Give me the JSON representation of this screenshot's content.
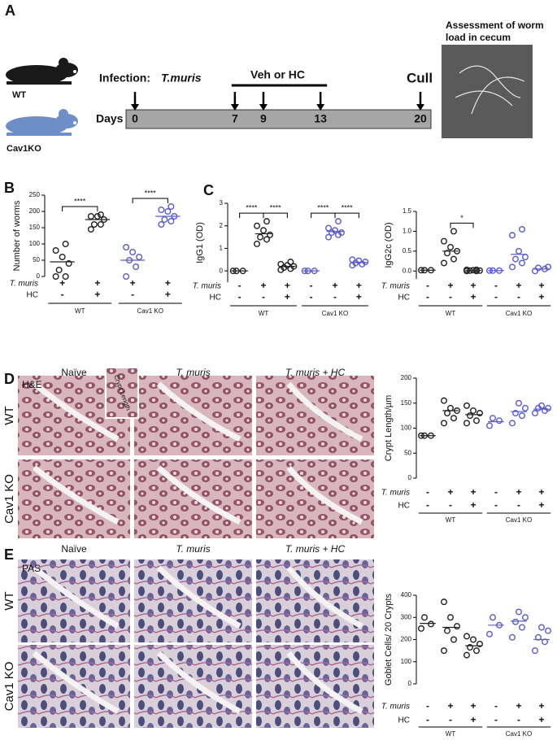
{
  "figure": {
    "a": {
      "label": "A",
      "mouse_labels": [
        "WT",
        "Cav1KO"
      ],
      "infection": "Infection:",
      "pathogen": "T.muris",
      "treatment": "Veh or HC",
      "cull": "Cull",
      "days_label": "Days",
      "days": [
        0,
        7,
        9,
        13,
        20
      ],
      "assessment": "Assessment of worm load in cecum"
    },
    "b_label": "B",
    "c_label": "C",
    "d": {
      "label": "D",
      "stain": "H&E",
      "inset": "Crypt Length",
      "columns": [
        "Naïve",
        "T. muris",
        "T. muris + HC"
      ],
      "rows": [
        "WT",
        "Cav1 KO"
      ]
    },
    "e": {
      "label": "E",
      "stain": "PAS",
      "columns": [
        "Naïve",
        "T. muris",
        "T. muris + HC"
      ],
      "rows": [
        "WT",
        "Cav1 KO"
      ]
    }
  },
  "chart_data": [
    {
      "type": "dotplot",
      "ylabel": "Number of worms",
      "ylim": [
        0,
        250
      ],
      "yticks": [
        0,
        50,
        100,
        150,
        200,
        250
      ],
      "row_labels": [
        "T. muris",
        "HC"
      ],
      "rows": [
        [
          "+",
          "+",
          "+",
          "+"
        ],
        [
          "-",
          "+",
          "-",
          "+"
        ]
      ],
      "group_labels": [
        "WT",
        "Cav1 KO"
      ],
      "groups": [
        {
          "color": "#222222",
          "values": [
            0,
            0,
            20,
            40,
            60,
            80,
            100
          ],
          "mean": 45
        },
        {
          "color": "#222222",
          "values": [
            145,
            160,
            160,
            175,
            185,
            185,
            190
          ],
          "mean": 175
        },
        {
          "color": "#5b5bcc",
          "values": [
            0,
            30,
            50,
            60,
            75,
            90
          ],
          "mean": 50
        },
        {
          "color": "#5b5bcc",
          "values": [
            160,
            170,
            175,
            185,
            200,
            205,
            215
          ],
          "mean": 185
        }
      ],
      "brackets": [
        {
          "label": "****",
          "between": [
            0,
            1
          ]
        },
        {
          "label": "****",
          "between": [
            2,
            3
          ]
        }
      ]
    },
    {
      "type": "dotplot",
      "ylabel": "IgG1 (OD)",
      "ylim": [
        -0.5,
        3
      ],
      "yticks": [
        0,
        1,
        2,
        3
      ],
      "row_labels": [
        "T. muris",
        "HC"
      ],
      "rows": [
        [
          "-",
          "+",
          "+",
          "-",
          "+",
          "+"
        ],
        [
          "-",
          "-",
          "+",
          "-",
          "-",
          "+"
        ]
      ],
      "group_labels": [
        "WT",
        "Cav1 KO"
      ],
      "groups": [
        {
          "color": "#222222",
          "values": [
            0,
            0,
            0
          ],
          "mean": 0
        },
        {
          "color": "#222222",
          "values": [
            1.2,
            1.4,
            1.5,
            1.6,
            1.8,
            2.0,
            2.2
          ],
          "mean": 1.65
        },
        {
          "color": "#222222",
          "values": [
            0.05,
            0.1,
            0.15,
            0.2,
            0.25,
            0.3,
            0.4
          ],
          "mean": 0.2
        },
        {
          "color": "#5b5bcc",
          "values": [
            0,
            0,
            0
          ],
          "mean": 0
        },
        {
          "color": "#5b5bcc",
          "values": [
            1.5,
            1.6,
            1.7,
            1.7,
            1.8,
            1.9,
            2.2
          ],
          "mean": 1.75
        },
        {
          "color": "#5b5bcc",
          "values": [
            0.25,
            0.3,
            0.35,
            0.4,
            0.45,
            0.5
          ],
          "mean": 0.38
        }
      ],
      "brackets": [
        {
          "label": "****",
          "between": [
            0,
            1
          ]
        },
        {
          "label": "****",
          "between": [
            1,
            2
          ]
        },
        {
          "label": "****",
          "between": [
            3,
            4
          ]
        },
        {
          "label": "****",
          "between": [
            4,
            5
          ]
        }
      ]
    },
    {
      "type": "dotplot",
      "ylabel": "IgG2c (OD)",
      "ylim": [
        -0.2,
        1.5
      ],
      "yticks": [
        {
          "value": 0,
          "label": "0.0"
        },
        {
          "value": 0.5,
          "label": "0.5"
        },
        {
          "value": 1,
          "label": "1.0"
        },
        {
          "value": 1.5,
          "label": "1.5"
        }
      ],
      "row_labels": [
        "T. muris",
        "HC"
      ],
      "rows": [
        [
          "-",
          "+",
          "+",
          "-",
          "+",
          "+"
        ],
        [
          "-",
          "-",
          "+",
          "-",
          "-",
          "+"
        ]
      ],
      "group_labels": [
        "WT",
        "Cav1 KO"
      ],
      "groups": [
        {
          "color": "#222222",
          "values": [
            0.02,
            0.02,
            0.02
          ],
          "mean": 0.02
        },
        {
          "color": "#222222",
          "values": [
            0.2,
            0.3,
            0.45,
            0.5,
            0.6,
            0.75,
            1.0
          ],
          "mean": 0.5
        },
        {
          "color": "#222222",
          "values": [
            0,
            0,
            0.01,
            0.01,
            0.02,
            0.03,
            0.03
          ],
          "mean": 0.01
        },
        {
          "color": "#5b5bcc",
          "values": [
            0.01,
            0.01,
            0.01
          ],
          "mean": 0.01
        },
        {
          "color": "#5b5bcc",
          "values": [
            0.1,
            0.2,
            0.3,
            0.35,
            0.5,
            0.9,
            1.05
          ],
          "mean": 0.42
        },
        {
          "color": "#5b5bcc",
          "values": [
            0,
            0.05,
            0.08,
            0.1
          ],
          "mean": 0.05
        }
      ],
      "brackets": [
        {
          "label": "*",
          "between": [
            1,
            2
          ]
        }
      ]
    },
    {
      "type": "dotplot",
      "ylabel": "Crypt Length/µm",
      "ylim": [
        0,
        200
      ],
      "yticks": [
        0,
        50,
        100,
        150,
        200
      ],
      "row_labels": [
        "T. muris",
        "HC"
      ],
      "rows": [
        [
          "-",
          "+",
          "+",
          "-",
          "+",
          "+"
        ],
        [
          "-",
          "-",
          "+",
          "-",
          "-",
          "+"
        ]
      ],
      "group_labels": [
        "WT",
        "Cav1 KO"
      ],
      "groups": [
        {
          "color": "#222222",
          "values": [
            85,
            85,
            85
          ],
          "mean": 85
        },
        {
          "color": "#222222",
          "values": [
            110,
            120,
            130,
            135,
            140,
            155
          ],
          "mean": 135
        },
        {
          "color": "#222222",
          "values": [
            110,
            115,
            125,
            130,
            135,
            145
          ],
          "mean": 127
        },
        {
          "color": "#5b5bcc",
          "values": [
            105,
            115,
            120
          ],
          "mean": 113
        },
        {
          "color": "#5b5bcc",
          "values": [
            110,
            125,
            130,
            140,
            150
          ],
          "mean": 133
        },
        {
          "color": "#5b5bcc",
          "values": [
            130,
            135,
            140,
            140,
            145
          ],
          "mean": 138
        }
      ]
    },
    {
      "type": "dotplot",
      "ylabel": "Goblet Cells/ 20 Crypts",
      "ylim": [
        0,
        400
      ],
      "yticks": [
        0,
        100,
        200,
        300,
        400
      ],
      "row_labels": [
        "T. muris",
        "HC"
      ],
      "rows": [
        [
          "-",
          "+",
          "+",
          "-",
          "+",
          "+"
        ],
        [
          "-",
          "-",
          "+",
          "-",
          "-",
          "+"
        ]
      ],
      "group_labels": [
        "WT",
        "Cav1 KO"
      ],
      "groups": [
        {
          "color": "#222222",
          "values": [
            250,
            270,
            300
          ],
          "mean": 273
        },
        {
          "color": "#222222",
          "values": [
            150,
            200,
            240,
            260,
            300,
            370
          ],
          "mean": 255
        },
        {
          "color": "#222222",
          "values": [
            130,
            150,
            165,
            180,
            200,
            215
          ],
          "mean": 172
        },
        {
          "color": "#5b5bcc",
          "values": [
            225,
            265,
            300
          ],
          "mean": 265
        },
        {
          "color": "#5b5bcc",
          "values": [
            210,
            255,
            280,
            300,
            325
          ],
          "mean": 283
        },
        {
          "color": "#5b5bcc",
          "values": [
            150,
            190,
            210,
            240,
            255
          ],
          "mean": 200
        }
      ]
    }
  ]
}
